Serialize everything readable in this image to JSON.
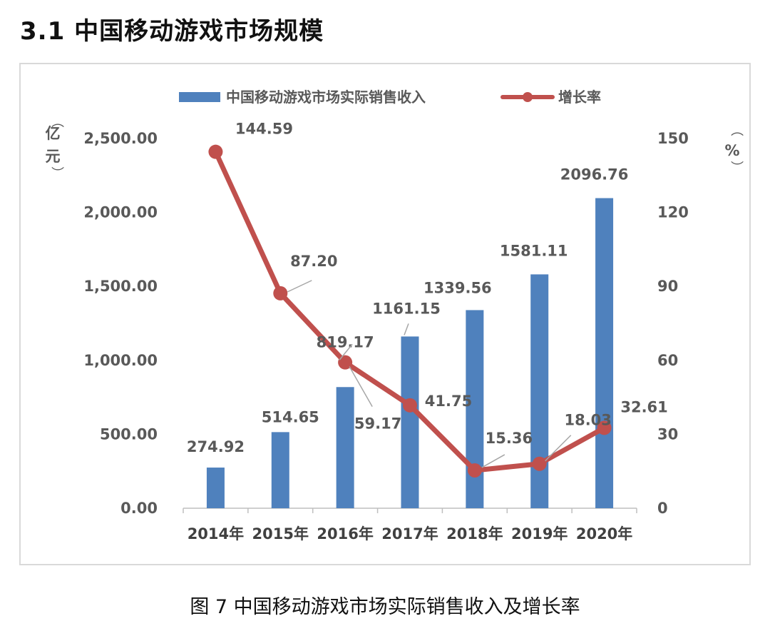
{
  "section_title": "3.1  中国移动游戏市场规模",
  "caption": "图 7  中国移动游戏市场实际销售收入及增长率",
  "chart_data": {
    "type": "bar",
    "title": "",
    "categories": [
      "2014年",
      "2015年",
      "2016年",
      "2017年",
      "2018年",
      "2019年",
      "2020年"
    ],
    "series": [
      {
        "name": "中国移动游戏市场实际销售收入",
        "type": "bar",
        "axis": "left",
        "color": "#4f81bd",
        "values": [
          274.92,
          514.65,
          819.17,
          1161.15,
          1339.56,
          1581.11,
          2096.76
        ],
        "labels": [
          "274.92",
          "514.65",
          "819.17",
          "1161.15",
          "1339.56",
          "1581.11",
          "2096.76"
        ]
      },
      {
        "name": "增长率",
        "type": "line",
        "axis": "right",
        "color": "#c0504d",
        "values": [
          144.59,
          87.2,
          59.17,
          41.75,
          15.36,
          18.03,
          32.61
        ],
        "labels": [
          "144.59",
          "87.20",
          "59.17",
          "41.75",
          "15.36",
          "18.03",
          "32.61"
        ]
      }
    ],
    "y_left": {
      "label_top": "（",
      "label_chars": [
        "亿",
        "元"
      ],
      "label_bottom": "）",
      "ylim": [
        0,
        2500
      ],
      "ticks": [
        "0.00",
        "500.00",
        "1,000.00",
        "1,500.00",
        "2,000.00",
        "2,500.00"
      ]
    },
    "y_right": {
      "label_top": "（",
      "label_chars": [
        "%"
      ],
      "label_bottom": "）",
      "ylim": [
        0,
        150
      ],
      "ticks": [
        "0",
        "30",
        "60",
        "90",
        "120",
        "150"
      ]
    },
    "grid": false,
    "legend_position": "top-center"
  }
}
